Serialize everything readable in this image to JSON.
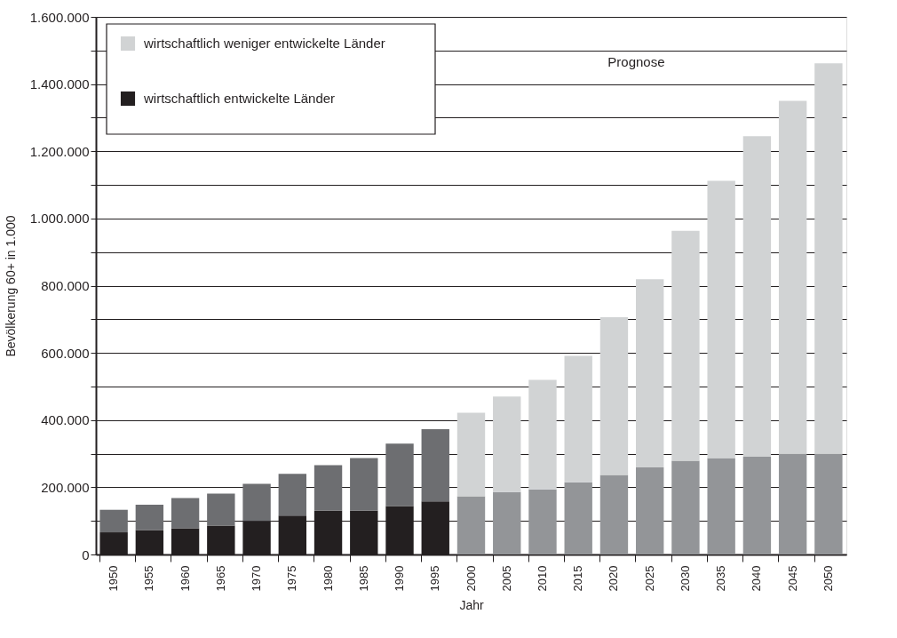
{
  "chart_data": {
    "type": "bar",
    "stacked": true,
    "xlabel": "Jahr",
    "ylabel": "Bevölkerung 60+ in 1.000",
    "categories": [
      "1950",
      "1955",
      "1960",
      "1965",
      "1970",
      "1975",
      "1980",
      "1985",
      "1990",
      "1995",
      "2000",
      "2005",
      "2010",
      "2015",
      "2020",
      "2025",
      "2030",
      "2035",
      "2040",
      "2045",
      "2050"
    ],
    "series": [
      {
        "name": "wirtschaftlich entwickelte Länder",
        "color": "#231f20",
        "colors": [
          "#231f20",
          "#231f20",
          "#231f20",
          "#231f20",
          "#231f20",
          "#231f20",
          "#231f20",
          "#231f20",
          "#231f20",
          "#231f20",
          "#939598",
          "#939598",
          "#939598",
          "#939598",
          "#939598",
          "#939598",
          "#939598",
          "#939598",
          "#939598",
          "#939598",
          "#939598"
        ],
        "values": [
          66000,
          73000,
          78000,
          86000,
          100000,
          116000,
          130000,
          130000,
          144000,
          158000,
          173000,
          186000,
          194000,
          215000,
          237000,
          259000,
          279000,
          287000,
          291000,
          300000,
          300000
        ]
      },
      {
        "name": "wirtschaftlich weniger entwickelte Länder",
        "color": "#d1d3d4",
        "colors": [
          "#6d6e71",
          "#6d6e71",
          "#6d6e71",
          "#6d6e71",
          "#6d6e71",
          "#6d6e71",
          "#6d6e71",
          "#6d6e71",
          "#6d6e71",
          "#6d6e71",
          "#d1d3d4",
          "#d1d3d4",
          "#d1d3d4",
          "#d1d3d4",
          "#d1d3d4",
          "#d1d3d4",
          "#d1d3d4",
          "#d1d3d4",
          "#d1d3d4",
          "#d1d3d4",
          "#d1d3d4"
        ],
        "values": [
          67000,
          75000,
          90000,
          95000,
          110000,
          124000,
          136000,
          157000,
          186000,
          215000,
          249000,
          284000,
          326000,
          376000,
          469000,
          560000,
          684000,
          825000,
          954000,
          1050000,
          1162000
        ]
      }
    ],
    "ylim": [
      0,
      1600000
    ],
    "yticks": [
      0,
      {
        "value": 100000,
        "label": null
      },
      {
        "value": 200000,
        "label": "200.000"
      },
      {
        "value": 300000,
        "label": null
      },
      {
        "value": 400000,
        "label": "400.000"
      },
      {
        "value": 500000,
        "label": null
      },
      {
        "value": 600000,
        "label": "600.000"
      },
      {
        "value": 700000,
        "label": null
      },
      {
        "value": 800000,
        "label": "800.000"
      },
      {
        "value": 900000,
        "label": null
      },
      {
        "value": 1000000,
        "label": "1.000.000"
      },
      {
        "value": 1100000,
        "label": null
      },
      {
        "value": 1200000,
        "label": "1.200.000"
      },
      {
        "value": 1300000,
        "label": null
      },
      {
        "value": 1400000,
        "label": "1.400.000"
      },
      {
        "value": 1500000,
        "label": null
      },
      {
        "value": 1600000,
        "label": "1.600.000"
      }
    ],
    "grid": "y",
    "legend": "top left",
    "annotations": [
      "Prognose"
    ]
  }
}
